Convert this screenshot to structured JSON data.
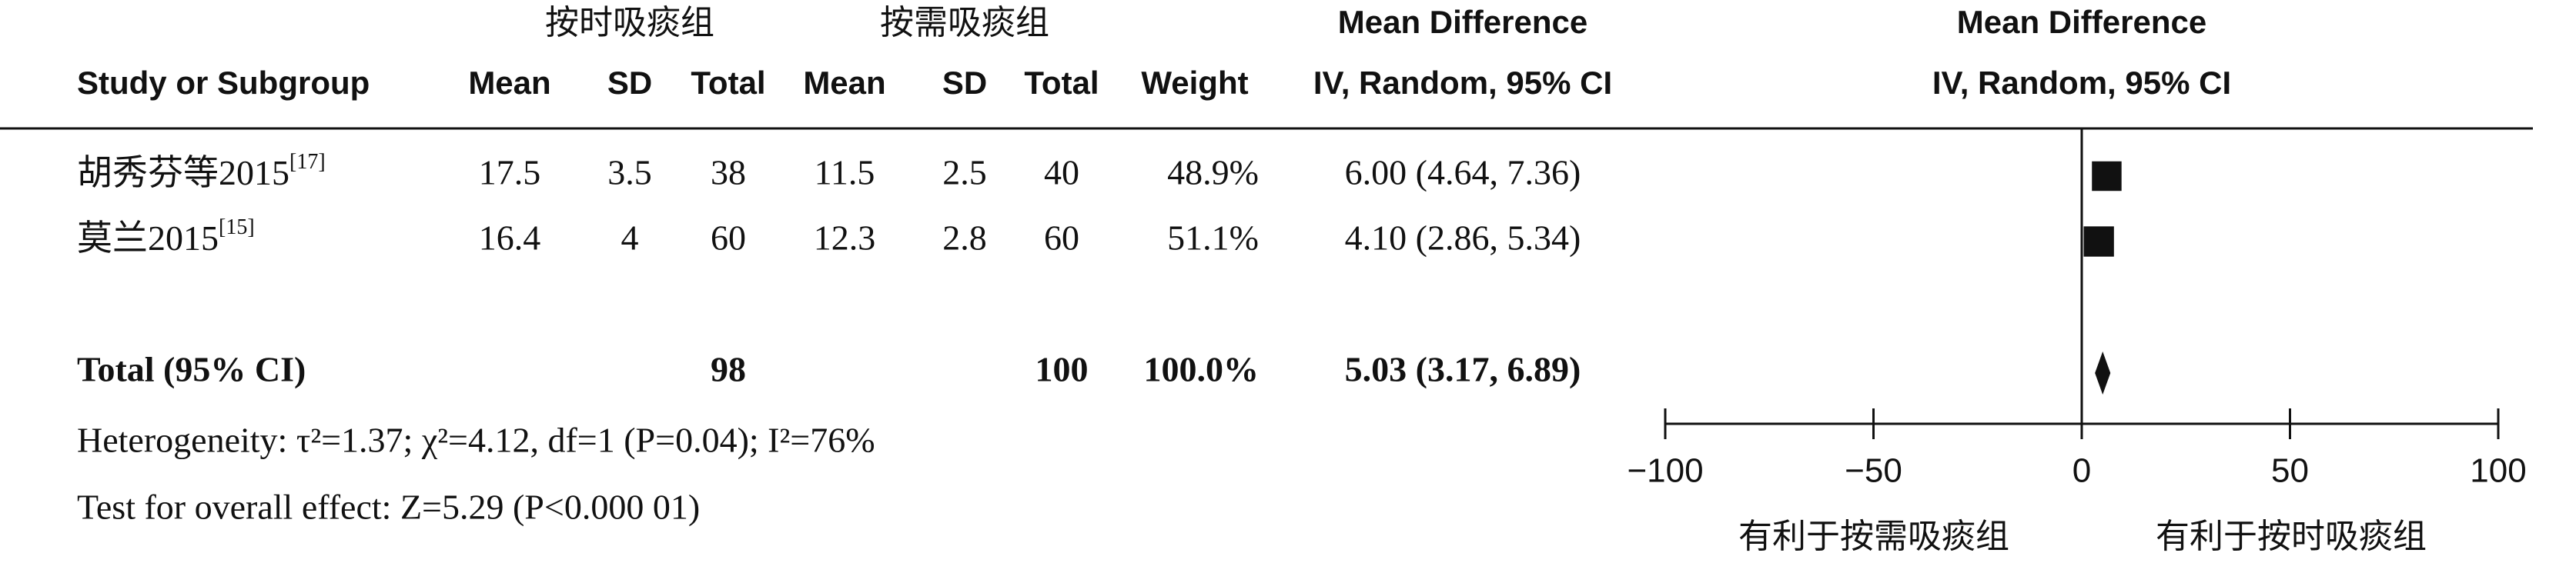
{
  "chart_data": {
    "type": "forest",
    "group_headers": [
      "按时吸痰组",
      "按需吸痰组"
    ],
    "columns": [
      "Study or Subgroup",
      "Mean",
      "SD",
      "Total",
      "Mean",
      "SD",
      "Total",
      "Weight"
    ],
    "md_header": [
      "Mean Difference",
      "IV, Random, 95% CI"
    ],
    "plot_header": [
      "Mean Difference",
      "IV, Random, 95% CI"
    ],
    "studies": [
      {
        "name": "胡秀芬等2015",
        "ref": "[17]",
        "exp_mean": 17.5,
        "exp_sd": 3.5,
        "exp_total": 38,
        "ctl_mean": 11.5,
        "ctl_sd": 2.5,
        "ctl_total": 40,
        "weight": 48.9,
        "weight_label": "48.9%",
        "md": 6.0,
        "ci_low": 4.64,
        "ci_high": 7.36,
        "md_label": "6.00 (4.64, 7.36)"
      },
      {
        "name": "莫兰2015",
        "ref": "[15]",
        "exp_mean": 16.4,
        "exp_sd": 4,
        "exp_total": 60,
        "ctl_mean": 12.3,
        "ctl_sd": 2.8,
        "ctl_total": 60,
        "weight": 51.1,
        "weight_label": "51.1%",
        "md": 4.1,
        "ci_low": 2.86,
        "ci_high": 5.34,
        "md_label": "4.10 (2.86, 5.34)"
      }
    ],
    "total": {
      "label": "Total (95% CI)",
      "exp_total": 98,
      "ctl_total": 100,
      "weight": 100,
      "weight_label": "100.0%",
      "md": 5.03,
      "ci_low": 3.17,
      "ci_high": 6.89,
      "md_label": "5.03 (3.17, 6.89)"
    },
    "heterogeneity": "Heterogeneity: τ²=1.37; χ²=4.12, df=1 (P=0.04); I²=76%",
    "overall_effect": "Test for overall effect: Z=5.29 (P<0.000 01)",
    "xlim": [
      -100,
      100
    ],
    "xticks": [
      {
        "value": -100,
        "label": "−100"
      },
      {
        "value": -50,
        "label": "−50"
      },
      0,
      50,
      100
    ],
    "favours": [
      "有利于按需吸痰组",
      "有利于按时吸痰组"
    ],
    "color": "#111111"
  }
}
